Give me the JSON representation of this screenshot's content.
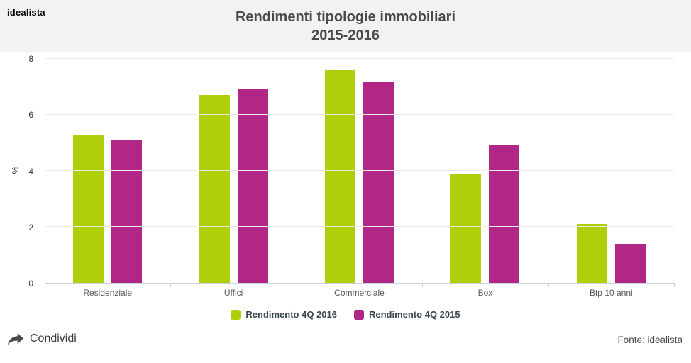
{
  "brand": {
    "logo_text": "idealista"
  },
  "title": {
    "line1": "Rendimenti tipologie immobiliari",
    "line2": "2015-2016"
  },
  "chart_data": {
    "type": "bar",
    "categories": [
      "Residenziale",
      "Uffici",
      "Commerciale",
      "Box",
      "Btp 10 anni"
    ],
    "series": [
      {
        "name": "Rendimento 4Q 2016",
        "color": "#aecf0a",
        "values": [
          5.3,
          6.7,
          7.6,
          3.9,
          2.1
        ]
      },
      {
        "name": "Rendimento 4Q 2015",
        "color": "#b22786",
        "values": [
          5.1,
          6.9,
          7.2,
          4.9,
          1.4
        ]
      }
    ],
    "title": "Rendimenti tipologie immobiliari 2015-2016",
    "xlabel": "",
    "ylabel": "%",
    "ylim": [
      0,
      8
    ],
    "yticks": [
      0,
      2,
      4,
      6,
      8
    ],
    "grid": true,
    "legend_position": "bottom"
  },
  "colors": {
    "header_bg": "#f2f2f2",
    "series_2016": "#aecf0a",
    "series_2015": "#b22786",
    "axis_line": "#c8d4de",
    "gridline": "#ebebeb"
  },
  "icons": {
    "menu": "hamburger-menu-icon",
    "share": "share-arrow-icon"
  },
  "footer": {
    "share_label": "Condividi",
    "source_label": "Fonte: idealista"
  }
}
